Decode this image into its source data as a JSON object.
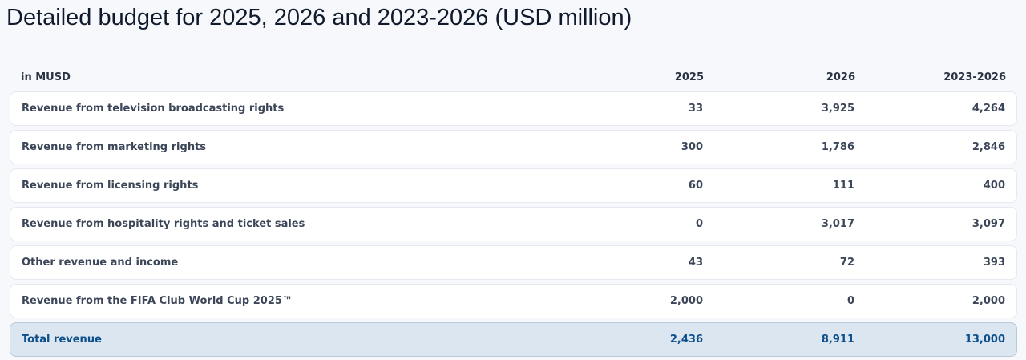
{
  "header": {
    "title": "Detailed budget for 2025, 2026 and 2023-2026 (USD million)"
  },
  "table": {
    "columns": [
      "in MUSD",
      "2025",
      "2026",
      "2023-2026"
    ],
    "rows": [
      [
        "Revenue from television broadcasting rights",
        "33",
        "3,925",
        "4,264"
      ],
      [
        "Revenue from marketing rights",
        "300",
        "1,786",
        "2,846"
      ],
      [
        "Revenue from licensing rights",
        "60",
        "111",
        "400"
      ],
      [
        "Revenue from hospitality rights and ticket sales",
        "0",
        "3,017",
        "3,097"
      ],
      [
        "Other revenue and income",
        "43",
        "72",
        "393"
      ],
      [
        "Revenue from the FIFA Club World Cup 2025™",
        "2,000",
        "0",
        "2,000"
      ]
    ],
    "total": [
      "Total revenue",
      "2,436",
      "8,911",
      "13,000"
    ]
  }
}
